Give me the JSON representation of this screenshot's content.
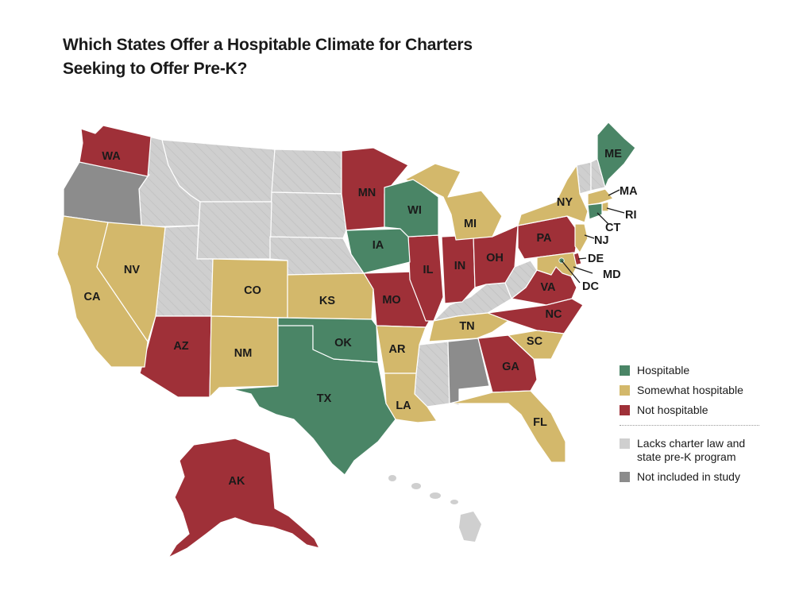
{
  "title": "Which States Offer a Hospitable Climate for Charters Seeking to Offer Pre-K?",
  "colors": {
    "hospitable": "#4a8566",
    "somewhat": "#d3b86b",
    "not": "#9f3038",
    "lacks": "#cfcfcf",
    "excluded": "#8c8c8c"
  },
  "legend": {
    "hospitable": "Hospitable",
    "somewhat": "Somewhat hospitable",
    "not": "Not hospitable",
    "lacks": "Lacks charter law and\nstate pre-K program",
    "excluded": "Not included in study"
  },
  "states": {
    "WA": "WA",
    "CA": "CA",
    "NV": "NV",
    "AZ": "AZ",
    "CO": "CO",
    "NM": "NM",
    "TX": "TX",
    "OK": "OK",
    "KS": "KS",
    "MN": "MN",
    "IA": "IA",
    "MO": "MO",
    "AR": "AR",
    "LA": "LA",
    "WI": "WI",
    "IL": "IL",
    "MI": "MI",
    "IN": "IN",
    "OH": "OH",
    "TN": "TN",
    "GA": "GA",
    "FL": "FL",
    "SC": "SC",
    "NC": "NC",
    "VA": "VA",
    "PA": "PA",
    "NY": "NY",
    "ME": "ME",
    "MA": "MA",
    "RI": "RI",
    "CT": "CT",
    "NJ": "NJ",
    "DE": "DE",
    "MD": "MD",
    "DC": "DC",
    "AK": "AK"
  }
}
